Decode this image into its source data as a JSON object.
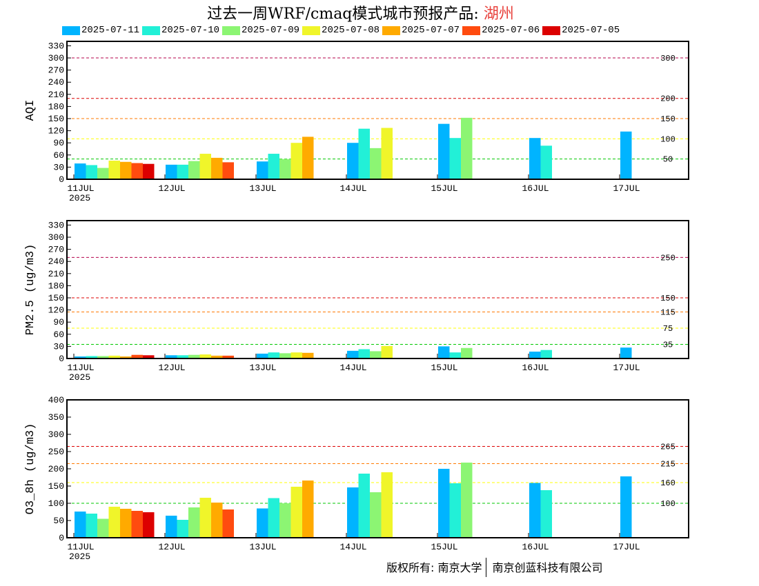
{
  "title": {
    "main": "过去一周WRF/cmaq模式城市预报产品: ",
    "city": "湖州"
  },
  "legend": [
    {
      "label": "2025-07-11",
      "color": "#00b4ff"
    },
    {
      "label": "2025-07-10",
      "color": "#22f0d7"
    },
    {
      "label": "2025-07-09",
      "color": "#8cf573"
    },
    {
      "label": "2025-07-08",
      "color": "#f0f52a"
    },
    {
      "label": "2025-07-07",
      "color": "#ffaa00"
    },
    {
      "label": "2025-07-06",
      "color": "#ff4b0f"
    },
    {
      "label": "2025-07-05",
      "color": "#dc0000"
    }
  ],
  "footer": {
    "left": "版权所有: 南京大学",
    "right": "南京创蓝科技有限公司"
  },
  "chart_data": [
    {
      "type": "bar",
      "ylabel": "AQI",
      "ylim": [
        0,
        345
      ],
      "yticks": [
        0,
        30,
        60,
        90,
        120,
        150,
        180,
        210,
        240,
        270,
        300,
        330
      ],
      "categories": [
        "11JUL",
        "12JUL",
        "13JUL",
        "14JUL",
        "15JUL",
        "16JUL",
        "17JUL"
      ],
      "year_label": "2025",
      "thresholds": [
        {
          "value": 300,
          "label": "300",
          "color": "#b4004b"
        },
        {
          "value": 200,
          "label": "200",
          "color": "#dc0000"
        },
        {
          "value": 150,
          "label": "150",
          "color": "#ff7800"
        },
        {
          "value": 100,
          "label": "100",
          "color": "#ffff00"
        },
        {
          "value": 50,
          "label": "50",
          "color": "#00c800"
        }
      ],
      "series": [
        {
          "name": "2025-07-11",
          "values": [
            39,
            36,
            44,
            90,
            137,
            102,
            118
          ]
        },
        {
          "name": "2025-07-10",
          "values": [
            35,
            36,
            63,
            125,
            102,
            83,
            null
          ]
        },
        {
          "name": "2025-07-09",
          "values": [
            28,
            45,
            50,
            77,
            152,
            null,
            null
          ]
        },
        {
          "name": "2025-07-08",
          "values": [
            46,
            63,
            90,
            127,
            null,
            null,
            null
          ]
        },
        {
          "name": "2025-07-07",
          "values": [
            43,
            53,
            105,
            null,
            null,
            null,
            null
          ]
        },
        {
          "name": "2025-07-06",
          "values": [
            40,
            42,
            null,
            null,
            null,
            null,
            null
          ]
        },
        {
          "name": "2025-07-05",
          "values": [
            38,
            null,
            null,
            null,
            null,
            null,
            null
          ]
        }
      ]
    },
    {
      "type": "bar",
      "ylabel": "PM2.5 (ug/m3)",
      "ylim": [
        0,
        345
      ],
      "yticks": [
        0,
        30,
        60,
        90,
        120,
        150,
        180,
        210,
        240,
        270,
        300,
        330
      ],
      "categories": [
        "11JUL",
        "12JUL",
        "13JUL",
        "14JUL",
        "15JUL",
        "16JUL",
        "17JUL"
      ],
      "year_label": "2025",
      "thresholds": [
        {
          "value": 250,
          "label": "250",
          "color": "#b4004b"
        },
        {
          "value": 150,
          "label": "150",
          "color": "#dc0000"
        },
        {
          "value": 115,
          "label": "115",
          "color": "#ff7800"
        },
        {
          "value": 75,
          "label": "75",
          "color": "#ffff00"
        },
        {
          "value": 35,
          "label": "35",
          "color": "#00c800"
        }
      ],
      "series": [
        {
          "name": "2025-07-11",
          "values": [
            5,
            8,
            12,
            19,
            30,
            17,
            27
          ]
        },
        {
          "name": "2025-07-10",
          "values": [
            6,
            8,
            15,
            23,
            15,
            21,
            null
          ]
        },
        {
          "name": "2025-07-09",
          "values": [
            6,
            9,
            13,
            18,
            26,
            null,
            null
          ]
        },
        {
          "name": "2025-07-08",
          "values": [
            7,
            10,
            15,
            31,
            null,
            null,
            null
          ]
        },
        {
          "name": "2025-07-07",
          "values": [
            5,
            7,
            14,
            null,
            null,
            null,
            null
          ]
        },
        {
          "name": "2025-07-06",
          "values": [
            9,
            7,
            null,
            null,
            null,
            null,
            null
          ]
        },
        {
          "name": "2025-07-05",
          "values": [
            8,
            null,
            null,
            null,
            null,
            null,
            null
          ]
        }
      ]
    },
    {
      "type": "bar",
      "ylabel": "O3_8h (ug/m3)",
      "ylim": [
        0,
        400
      ],
      "yticks": [
        0,
        50,
        100,
        150,
        200,
        250,
        300,
        350,
        400
      ],
      "categories": [
        "11JUL",
        "12JUL",
        "13JUL",
        "14JUL",
        "15JUL",
        "16JUL",
        "17JUL"
      ],
      "year_label": "2025",
      "thresholds": [
        {
          "value": 265,
          "label": "265",
          "color": "#dc0000"
        },
        {
          "value": 215,
          "label": "215",
          "color": "#ff7800"
        },
        {
          "value": 160,
          "label": "160",
          "color": "#ffff00"
        },
        {
          "value": 100,
          "label": "100",
          "color": "#00c800"
        }
      ],
      "series": [
        {
          "name": "2025-07-11",
          "values": [
            76,
            64,
            85,
            146,
            200,
            159,
            178
          ]
        },
        {
          "name": "2025-07-10",
          "values": [
            70,
            52,
            115,
            186,
            158,
            138,
            null
          ]
        },
        {
          "name": "2025-07-09",
          "values": [
            55,
            88,
            100,
            132,
            218,
            null,
            null
          ]
        },
        {
          "name": "2025-07-08",
          "values": [
            90,
            116,
            148,
            190,
            null,
            null,
            null
          ]
        },
        {
          "name": "2025-07-07",
          "values": [
            84,
            102,
            166,
            null,
            null,
            null,
            null
          ]
        },
        {
          "name": "2025-07-06",
          "values": [
            78,
            82,
            null,
            null,
            null,
            null,
            null
          ]
        },
        {
          "name": "2025-07-05",
          "values": [
            74,
            null,
            null,
            null,
            null,
            null,
            null
          ]
        }
      ]
    }
  ]
}
